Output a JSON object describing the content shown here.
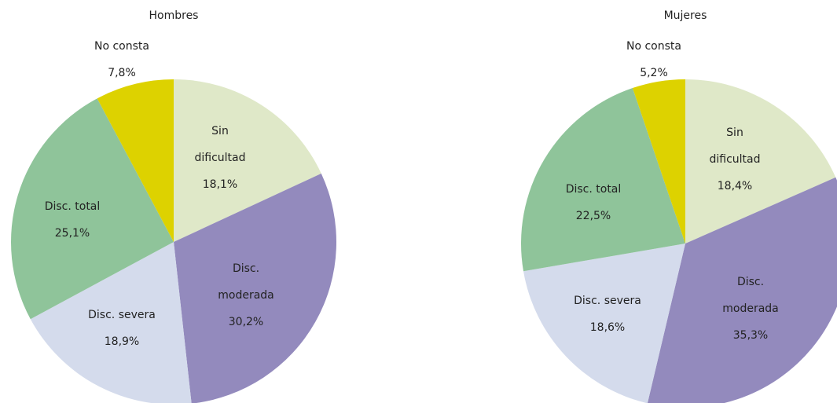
{
  "chart_data": [
    {
      "type": "pie",
      "title": "Hombres",
      "categories": [
        "Sin\ndificultad",
        "Disc.\nmoderada",
        "Disc. severa",
        "Disc. total",
        "No consta"
      ],
      "values": [
        18.1,
        30.2,
        18.9,
        25.1,
        7.8
      ],
      "value_labels": [
        "18,1%",
        "30,2%",
        "18,9%",
        "25,1%",
        "7,8%"
      ],
      "colors": [
        "#dfe8c8",
        "#938abd",
        "#d4dbec",
        "#8fc49a",
        "#ddd200"
      ]
    },
    {
      "type": "pie",
      "title": "Mujeres",
      "categories": [
        "Sin\ndificultad",
        "Disc.\nmoderada",
        "Disc. severa",
        "Disc. total",
        "No consta"
      ],
      "values": [
        18.4,
        35.3,
        18.6,
        22.5,
        5.2
      ],
      "value_labels": [
        "18,4%",
        "35,3%",
        "18,6%",
        "22,5%",
        "5,2%"
      ],
      "colors": [
        "#dfe8c8",
        "#938abd",
        "#d4dbec",
        "#8fc49a",
        "#ddd200"
      ]
    }
  ]
}
